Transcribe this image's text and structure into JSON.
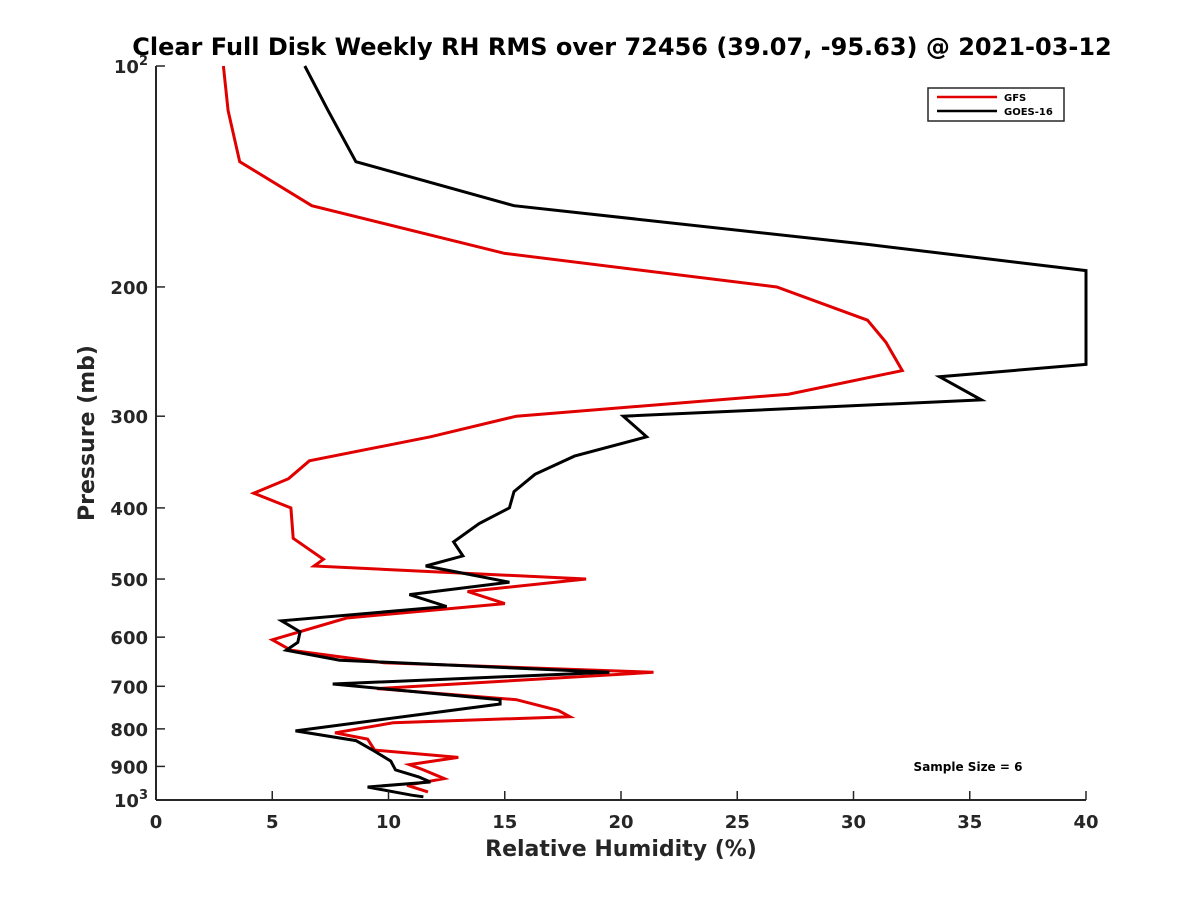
{
  "chart_data": {
    "type": "line",
    "title": "Clear Full Disk Weekly RH RMS over 72456 (39.07, -95.63) @ 2021-03-12",
    "xlabel": "Relative Humidity (%)",
    "ylabel": "Pressure (mb)",
    "xlim": [
      0,
      40
    ],
    "ylim": [
      100,
      1000
    ],
    "yscale": "log",
    "y_reversed": true,
    "grid": false,
    "legend_position": "top-right",
    "x_ticks": [
      0,
      5,
      10,
      15,
      20,
      25,
      30,
      35,
      40
    ],
    "x_tick_labels": [
      "0",
      "5",
      "10",
      "15",
      "20",
      "25",
      "30",
      "35",
      "40"
    ],
    "y_ticks": [
      100,
      200,
      300,
      400,
      500,
      600,
      700,
      800,
      900,
      1000
    ],
    "y_tick_labels": [
      {
        "base": "10",
        "sup": "2"
      },
      {
        "base": "200",
        "sup": ""
      },
      {
        "base": "300",
        "sup": ""
      },
      {
        "base": "400",
        "sup": ""
      },
      {
        "base": "500",
        "sup": ""
      },
      {
        "base": "600",
        "sup": ""
      },
      {
        "base": "700",
        "sup": ""
      },
      {
        "base": "800",
        "sup": ""
      },
      {
        "base": "900",
        "sup": ""
      },
      {
        "base": "10",
        "sup": "3"
      }
    ],
    "annotation": "Sample Size = 6",
    "series": [
      {
        "name": "GFS",
        "color": "#e00000",
        "points": [
          [
            2.9,
            100
          ],
          [
            3.1,
            115
          ],
          [
            3.6,
            135
          ],
          [
            6.7,
            155
          ],
          [
            15.0,
            180
          ],
          [
            26.7,
            200
          ],
          [
            30.6,
            222
          ],
          [
            31.4,
            238
          ],
          [
            32.1,
            260
          ],
          [
            27.2,
            280
          ],
          [
            15.5,
            300
          ],
          [
            11.8,
            320
          ],
          [
            6.6,
            345
          ],
          [
            5.7,
            365
          ],
          [
            4.2,
            382
          ],
          [
            5.8,
            400
          ],
          [
            5.9,
            440
          ],
          [
            7.2,
            470
          ],
          [
            6.8,
            480
          ],
          [
            18.5,
            500
          ],
          [
            13.4,
            520
          ],
          [
            15.0,
            540
          ],
          [
            8.2,
            565
          ],
          [
            5.0,
            605
          ],
          [
            5.8,
            625
          ],
          [
            9.8,
            650
          ],
          [
            21.4,
            670
          ],
          [
            9.5,
            705
          ],
          [
            15.5,
            730
          ],
          [
            17.3,
            755
          ],
          [
            17.8,
            770
          ],
          [
            10.2,
            785
          ],
          [
            7.7,
            810
          ],
          [
            9.1,
            826
          ],
          [
            9.4,
            855
          ],
          [
            13.0,
            875
          ],
          [
            10.9,
            895
          ],
          [
            11.5,
            910
          ],
          [
            12.4,
            935
          ],
          [
            10.8,
            955
          ],
          [
            11.7,
            975
          ]
        ]
      },
      {
        "name": "GOES-16",
        "color": "#000000",
        "points": [
          [
            6.4,
            100
          ],
          [
            7.4,
            115
          ],
          [
            8.6,
            135
          ],
          [
            15.4,
            155
          ],
          [
            30.6,
            175
          ],
          [
            40.0,
            190
          ],
          [
            40.0,
            255
          ],
          [
            33.7,
            265
          ],
          [
            35.5,
            285
          ],
          [
            20.1,
            300
          ],
          [
            21.1,
            320
          ],
          [
            18.0,
            340
          ],
          [
            16.3,
            360
          ],
          [
            15.4,
            380
          ],
          [
            15.2,
            400
          ],
          [
            13.9,
            420
          ],
          [
            12.8,
            445
          ],
          [
            13.2,
            465
          ],
          [
            11.6,
            480
          ],
          [
            15.2,
            505
          ],
          [
            10.9,
            525
          ],
          [
            12.5,
            545
          ],
          [
            5.4,
            570
          ],
          [
            6.2,
            590
          ],
          [
            6.1,
            610
          ],
          [
            5.6,
            625
          ],
          [
            7.9,
            645
          ],
          [
            19.5,
            670
          ],
          [
            7.6,
            695
          ],
          [
            14.8,
            730
          ],
          [
            14.8,
            740
          ],
          [
            6.0,
            805
          ],
          [
            8.6,
            830
          ],
          [
            9.4,
            858
          ],
          [
            10.1,
            885
          ],
          [
            10.3,
            910
          ],
          [
            11.3,
            930
          ],
          [
            11.8,
            945
          ],
          [
            9.1,
            960
          ],
          [
            11.0,
            985
          ],
          [
            11.5,
            990
          ]
        ]
      }
    ]
  }
}
